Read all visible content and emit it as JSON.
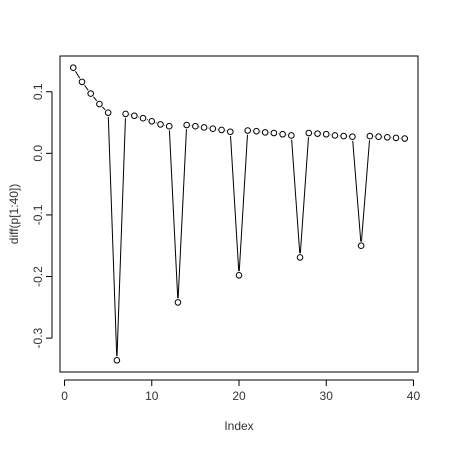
{
  "chart_data": {
    "type": "line",
    "plot_style": "both points and lines with gaps around points",
    "title": "",
    "xlabel": "Index",
    "ylabel": "diff(p[1:40])",
    "xlim": [
      1,
      39
    ],
    "ylim": [
      -0.336,
      0.139
    ],
    "x_ticks": [
      0,
      10,
      20,
      30,
      40
    ],
    "x_tick_labels": [
      "0",
      "10",
      "20",
      "30",
      "40"
    ],
    "y_ticks": [
      0.1,
      0.0,
      -0.1,
      -0.2,
      -0.3
    ],
    "y_tick_labels": [
      "0.1",
      "0.0",
      "-0.1",
      "-0.2",
      "-0.3"
    ],
    "grid": false,
    "legend": "none",
    "x": [
      1,
      2,
      3,
      4,
      5,
      6,
      7,
      8,
      9,
      10,
      11,
      12,
      13,
      14,
      15,
      16,
      17,
      18,
      19,
      20,
      21,
      22,
      23,
      24,
      25,
      26,
      27,
      28,
      29,
      30,
      31,
      32,
      33,
      34,
      35,
      36,
      37,
      38,
      39
    ],
    "y": [
      0.139,
      0.116,
      0.097,
      0.08,
      0.066,
      -0.336,
      0.064,
      0.061,
      0.057,
      0.052,
      0.047,
      0.044,
      -0.242,
      0.046,
      0.044,
      0.042,
      0.04,
      0.038,
      0.035,
      -0.198,
      0.037,
      0.036,
      0.034,
      0.033,
      0.031,
      0.029,
      -0.169,
      0.033,
      0.032,
      0.031,
      0.029,
      0.028,
      0.027,
      -0.15,
      0.028,
      0.027,
      0.026,
      0.025,
      0.024
    ]
  }
}
